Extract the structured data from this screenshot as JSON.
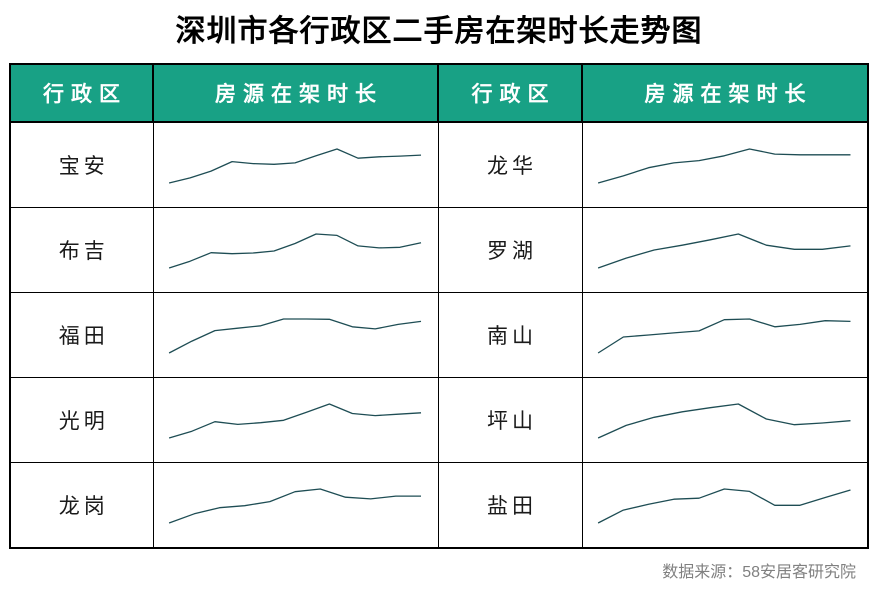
{
  "title": "深圳市各行政区二手房在架时长走势图",
  "source": "数据来源：58安居客研究院",
  "colors": {
    "header_bg": "#18A185",
    "header_text": "#FFFFFF",
    "sparkline": "#1E4D54",
    "border": "#000000",
    "title_text": "#000000",
    "source_text": "#808080"
  },
  "table": {
    "headers": [
      "行政区",
      "房源在架时长",
      "行政区",
      "房源在架时长"
    ],
    "left_column_series": [
      0,
      1,
      2,
      3,
      4
    ],
    "right_column_series": [
      5,
      6,
      7,
      8,
      9
    ]
  },
  "chart_data": {
    "type": "line",
    "title": "深圳市各行政区二手房在架时长走势图",
    "xlabel": "",
    "ylabel": "",
    "ylim": [
      0,
      100
    ],
    "grid": false,
    "legend_position": "none",
    "note": "Sparklines have no visible axes, ticks or value labels; values are normalized visual estimates on a 0-100 scale.",
    "series": [
      {
        "name": "宝安",
        "values": [
          0,
          15,
          35,
          63,
          57,
          55,
          59,
          80,
          100,
          73,
          77,
          79,
          82
        ]
      },
      {
        "name": "布吉",
        "values": [
          0,
          20,
          45,
          42,
          44,
          50,
          72,
          100,
          96,
          65,
          59,
          61,
          74
        ]
      },
      {
        "name": "福田",
        "values": [
          0,
          35,
          66,
          73,
          80,
          100,
          100,
          99,
          77,
          71,
          84,
          93
        ]
      },
      {
        "name": "光明",
        "values": [
          0,
          20,
          48,
          40,
          45,
          52,
          76,
          100,
          72,
          66,
          70,
          74
        ]
      },
      {
        "name": "龙岗",
        "values": [
          0,
          27,
          45,
          51,
          63,
          92,
          100,
          76,
          71,
          79,
          79
        ]
      },
      {
        "name": "龙华",
        "values": [
          0,
          21,
          45,
          59,
          66,
          80,
          100,
          85,
          83,
          83,
          83
        ]
      },
      {
        "name": "罗湖",
        "values": [
          0,
          29,
          53,
          67,
          83,
          100,
          67,
          55,
          55,
          65
        ]
      },
      {
        "name": "南山",
        "values": [
          0,
          47,
          53,
          59,
          65,
          98,
          100,
          77,
          84,
          95,
          93
        ]
      },
      {
        "name": "坪山",
        "values": [
          0,
          37,
          61,
          77,
          89,
          100,
          56,
          39,
          44,
          51
        ]
      },
      {
        "name": "盐田",
        "values": [
          0,
          38,
          55,
          70,
          73,
          100,
          93,
          52,
          52,
          75,
          97
        ]
      }
    ]
  }
}
